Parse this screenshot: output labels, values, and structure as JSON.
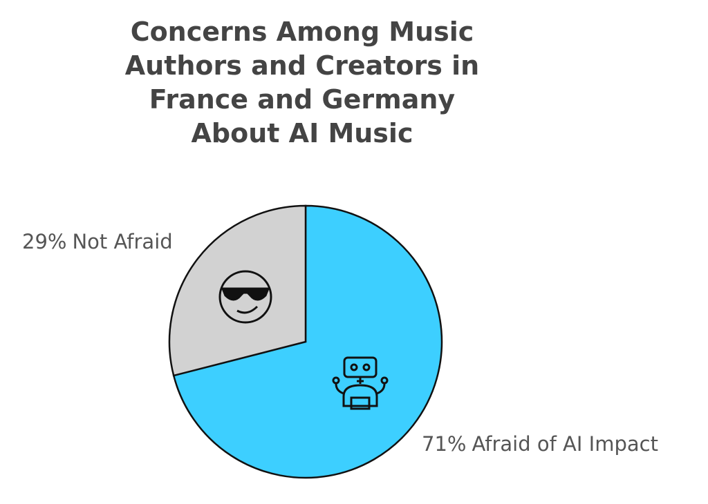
{
  "chart_data": {
    "type": "pie",
    "title": "Concerns Among Music Authors and Creators in France and Germany About AI Music",
    "categories": [
      "Afraid of AI Impact",
      "Not Afraid"
    ],
    "values": [
      71,
      29
    ],
    "value_labels": [
      "71%",
      "29%"
    ],
    "colors": [
      "#3dcfff",
      "#d2d2d2"
    ]
  }
}
